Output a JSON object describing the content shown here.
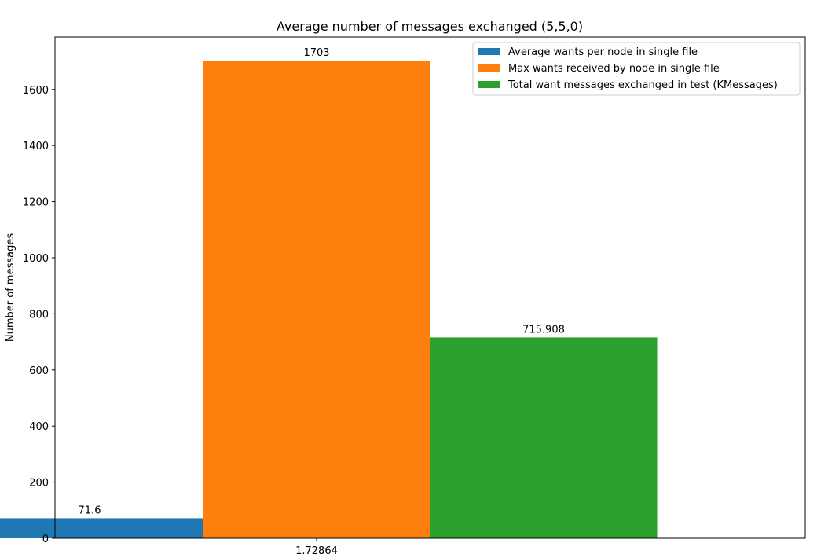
{
  "chart_data": {
    "type": "bar",
    "title": "Average number of messages exchanged (5,5,0)",
    "xlabel": "",
    "ylabel": "Number of messages",
    "categories": [
      "1.72864"
    ],
    "ylim": [
      0,
      1787
    ],
    "yticks": [
      0,
      200,
      400,
      600,
      800,
      1000,
      1200,
      1400,
      1600
    ],
    "ytick_labels": [
      "0",
      "200",
      "400",
      "600",
      "800",
      "1000",
      "1200",
      "1400",
      "1600"
    ],
    "grid": false,
    "legend_position": "top-right",
    "series": [
      {
        "name": "Average wants per node in single file",
        "values": [
          71.6
        ],
        "value_labels": [
          "71.6"
        ],
        "color": "#1f77b4"
      },
      {
        "name": "Max wants received by node in single file",
        "values": [
          1703
        ],
        "value_labels": [
          "1703"
        ],
        "color": "#ff7f0e"
      },
      {
        "name": "Total want messages exchanged in test (KMessages)",
        "values": [
          715.908
        ],
        "value_labels": [
          "715.908"
        ],
        "color": "#2ca02c"
      }
    ]
  }
}
